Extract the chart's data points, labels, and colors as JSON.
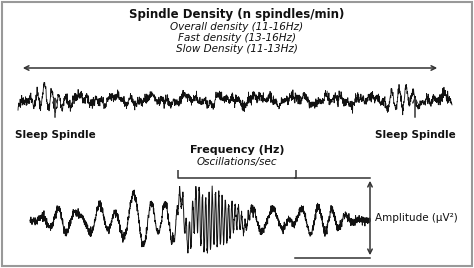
{
  "title_line1": "Spindle Density (n spindles/min)",
  "title_line2": "Overall density (11-16Hz)",
  "title_line3": "Fast density (13-16Hz)",
  "title_line4": "Slow Density (11-13Hz)",
  "label_sleep_spindle_left": "Sleep Spindle",
  "label_sleep_spindle_right": "Sleep Spindle",
  "label_frequency": "Frequency (Hz)",
  "label_oscillations": "Oscillations/sec",
  "label_amplitude": "Amplitude (μV²)",
  "bg_color": "#ffffff",
  "wave_color": "#111111",
  "text_color": "#111111",
  "arrow_color": "#333333",
  "border_color": "#999999"
}
